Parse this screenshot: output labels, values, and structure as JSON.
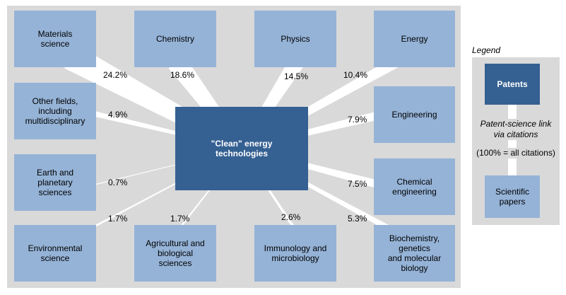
{
  "center": {
    "label_line1": "\"Clean\" energy",
    "label_line2": "technologies"
  },
  "fields": [
    {
      "id": "materials",
      "line1": "Materials",
      "line2": "science",
      "line3": "",
      "line4": "",
      "pct": "24.2%",
      "share": 24.2
    },
    {
      "id": "chemistry",
      "line1": "Chemistry",
      "line2": "",
      "line3": "",
      "line4": "",
      "pct": "18.6%",
      "share": 18.6
    },
    {
      "id": "physics",
      "line1": "Physics",
      "line2": "",
      "line3": "",
      "line4": "",
      "pct": "14.5%",
      "share": 14.5
    },
    {
      "id": "energy",
      "line1": "Energy",
      "line2": "",
      "line3": "",
      "line4": "",
      "pct": "10.4%",
      "share": 10.4
    },
    {
      "id": "other",
      "line1": "Other fields,",
      "line2": "including",
      "line3": "multidisciplinary",
      "line4": "",
      "pct": "4.9%",
      "share": 4.9
    },
    {
      "id": "engineering",
      "line1": "Engineering",
      "line2": "",
      "line3": "",
      "line4": "",
      "pct": "7.9%",
      "share": 7.9
    },
    {
      "id": "earth",
      "line1": "Earth and",
      "line2": "planetary",
      "line3": "sciences",
      "line4": "",
      "pct": "0.7%",
      "share": 0.7
    },
    {
      "id": "chemeng",
      "line1": "Chemical",
      "line2": "engineering",
      "line3": "",
      "line4": "",
      "pct": "7.5%",
      "share": 7.5
    },
    {
      "id": "environmental",
      "line1": "Environmental",
      "line2": "science",
      "line3": "",
      "line4": "",
      "pct": "1.7%",
      "share": 1.7
    },
    {
      "id": "agri",
      "line1": "Agricultural and",
      "line2": "biological",
      "line3": "sciences",
      "line4": "",
      "pct": "1.7%",
      "share": 1.7
    },
    {
      "id": "immuno",
      "line1": "Immunology and",
      "line2": "microbiology",
      "line3": "",
      "line4": "",
      "pct": "2.6%",
      "share": 2.6
    },
    {
      "id": "biochem",
      "line1": "Biochemistry,",
      "line2": "genetics",
      "line3": "and molecular",
      "line4": "biology",
      "pct": "5.3%",
      "share": 5.3
    }
  ],
  "legend": {
    "title": "Legend",
    "patents": "Patents",
    "link_line1": "Patent-science link",
    "link_line2": "via citations",
    "note": "(100% = all citations)",
    "papers_line1": "Scientific",
    "papers_line2": "papers"
  },
  "colors": {
    "panel": "#d9d9d9",
    "science_box": "#95b3d7",
    "patent_box": "#356092",
    "link": "#ffffff"
  }
}
